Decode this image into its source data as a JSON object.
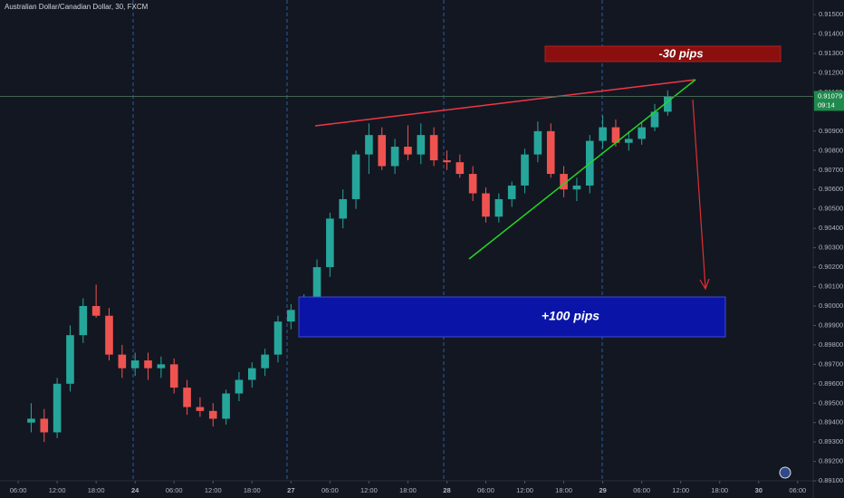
{
  "chart_data": {
    "type": "candlestick",
    "title": "Australian Dollar/Canadian Dollar, 30, FXCM",
    "up_color": "#26a69a",
    "down_color": "#ef5350",
    "open": [
      0.894,
      0.8942,
      0.8935,
      0.896,
      0.8985,
      0.9,
      0.8995,
      0.8975,
      0.8968,
      0.8972,
      0.8968,
      0.897,
      0.8958,
      0.8948,
      0.8946,
      0.8942,
      0.8955,
      0.8962,
      0.8968,
      0.8975,
      0.8992,
      0.8998,
      0.9002,
      0.902,
      0.9045,
      0.9055,
      0.9078,
      0.9088,
      0.9072,
      0.9082,
      0.9078,
      0.9088,
      0.9075,
      0.9074,
      0.9068,
      0.9058,
      0.9046,
      0.9055,
      0.9062,
      0.9078,
      0.909,
      0.9068,
      0.906,
      0.9062,
      0.9085,
      0.9092,
      0.9084,
      0.9086,
      0.9092,
      0.91
    ],
    "high": [
      0.895,
      0.8947,
      0.8963,
      0.899,
      0.9004,
      0.9011,
      0.8999,
      0.898,
      0.8976,
      0.8976,
      0.8974,
      0.8973,
      0.8962,
      0.8953,
      0.895,
      0.8957,
      0.8966,
      0.8971,
      0.8978,
      0.8995,
      0.9001,
      0.9006,
      0.9024,
      0.9048,
      0.906,
      0.908,
      0.9094,
      0.9092,
      0.9086,
      0.9093,
      0.9094,
      0.9092,
      0.908,
      0.9078,
      0.9072,
      0.9061,
      0.9058,
      0.9064,
      0.9081,
      0.9095,
      0.9094,
      0.9072,
      0.9066,
      0.9088,
      0.9098,
      0.9096,
      0.909,
      0.9095,
      0.9104,
      0.9111
    ],
    "low": [
      0.8935,
      0.893,
      0.8932,
      0.8956,
      0.8981,
      0.8994,
      0.8972,
      0.8963,
      0.8964,
      0.8962,
      0.8963,
      0.8955,
      0.8944,
      0.8943,
      0.8938,
      0.8939,
      0.8951,
      0.8958,
      0.8964,
      0.8971,
      0.8988,
      0.8994,
      0.899,
      0.9015,
      0.904,
      0.905,
      0.9068,
      0.907,
      0.9068,
      0.9075,
      0.9073,
      0.9072,
      0.907,
      0.9066,
      0.9054,
      0.9043,
      0.9043,
      0.9051,
      0.9058,
      0.9074,
      0.9066,
      0.9056,
      0.9054,
      0.9058,
      0.9081,
      0.9082,
      0.908,
      0.9083,
      0.909,
      0.9098
    ],
    "close": [
      0.8942,
      0.8935,
      0.896,
      0.8985,
      0.9,
      0.8995,
      0.8975,
      0.8968,
      0.8972,
      0.8968,
      0.897,
      0.8958,
      0.8948,
      0.8946,
      0.8942,
      0.8955,
      0.8962,
      0.8968,
      0.8975,
      0.8992,
      0.8998,
      0.9002,
      0.902,
      0.9045,
      0.9055,
      0.9078,
      0.9088,
      0.9072,
      0.9082,
      0.9078,
      0.9088,
      0.9075,
      0.9074,
      0.9068,
      0.9058,
      0.9046,
      0.9055,
      0.9062,
      0.9078,
      0.909,
      0.9068,
      0.906,
      0.9062,
      0.9085,
      0.9092,
      0.9084,
      0.9086,
      0.9092,
      0.91,
      0.9108
    ],
    "xlim": [
      -2.4,
      60.2
    ],
    "xticks": [
      {
        "value": -1,
        "label": "06:00"
      },
      {
        "value": 2,
        "label": "12:00"
      },
      {
        "value": 5,
        "label": "18:00"
      },
      {
        "value": 8,
        "label": "24"
      },
      {
        "value": 11,
        "label": "06:00"
      },
      {
        "value": 14,
        "label": "12:00"
      },
      {
        "value": 17,
        "label": "18:00"
      },
      {
        "value": 20,
        "label": "27"
      },
      {
        "value": 23,
        "label": "06:00"
      },
      {
        "value": 26,
        "label": "12:00"
      },
      {
        "value": 29,
        "label": "18:00"
      },
      {
        "value": 32,
        "label": "28"
      },
      {
        "value": 35,
        "label": "06:00"
      },
      {
        "value": 38,
        "label": "12:00"
      },
      {
        "value": 41,
        "label": "18:00"
      },
      {
        "value": 44,
        "label": "29"
      },
      {
        "value": 47,
        "label": "06:00"
      },
      {
        "value": 50,
        "label": "12:00"
      },
      {
        "value": 53,
        "label": "18:00"
      },
      {
        "value": 56,
        "label": "30"
      },
      {
        "value": 59,
        "label": "06:00"
      }
    ],
    "ylim": [
      0.89012,
      0.91575
    ],
    "yticks": [
      {
        "value": 0.915,
        "label": "0.91500"
      },
      {
        "value": 0.914,
        "label": "0.91400"
      },
      {
        "value": 0.913,
        "label": "0.91300"
      },
      {
        "value": 0.912,
        "label": "0.91200"
      },
      {
        "value": 0.911,
        "label": "0.91100"
      },
      {
        "value": 0.909,
        "label": "0.90900"
      },
      {
        "value": 0.908,
        "label": "0.90800"
      },
      {
        "value": 0.907,
        "label": "0.90700"
      },
      {
        "value": 0.906,
        "label": "0.90600"
      },
      {
        "value": 0.905,
        "label": "0.90500"
      },
      {
        "value": 0.904,
        "label": "0.90400"
      },
      {
        "value": 0.903,
        "label": "0.90300"
      },
      {
        "value": 0.902,
        "label": "0.90200"
      },
      {
        "value": 0.901,
        "label": "0.90100"
      },
      {
        "value": 0.9,
        "label": "0.90000"
      },
      {
        "value": 0.899,
        "label": "0.89900"
      },
      {
        "value": 0.898,
        "label": "0.89800"
      },
      {
        "value": 0.897,
        "label": "0.89700"
      },
      {
        "value": 0.896,
        "label": "0.89600"
      },
      {
        "value": 0.895,
        "label": "0.89500"
      },
      {
        "value": 0.894,
        "label": "0.89400"
      },
      {
        "value": 0.893,
        "label": "0.89300"
      },
      {
        "value": 0.892,
        "label": "0.89200"
      },
      {
        "value": 0.891,
        "label": "0.89100"
      }
    ],
    "last_price": {
      "value": 0.91079,
      "label": "0.91079"
    },
    "countdown": "09:14",
    "annotations": {
      "short_target": "-30 pips",
      "long_target": "+100 pips"
    }
  }
}
